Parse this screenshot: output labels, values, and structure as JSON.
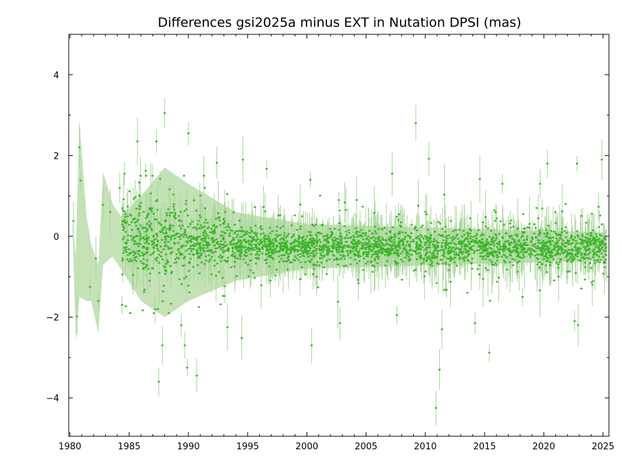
{
  "chart_data": {
    "type": "scatter",
    "title": "Differences gsi2025a minus EXT in Nutation DPSI (mas)",
    "xlabel": "",
    "ylabel": "",
    "xlim": [
      1979.9,
      2025.5
    ],
    "ylim": [
      -4.95,
      5.0
    ],
    "x_ticks": [
      1980,
      1985,
      1990,
      1995,
      2000,
      2005,
      2010,
      2015,
      2020,
      2025
    ],
    "x_tick_labels": [
      "1980",
      "1985",
      "1990",
      "1995",
      "2000",
      "2005",
      "2010",
      "2015",
      "2020",
      "2025"
    ],
    "y_ticks": [
      4,
      2,
      0,
      -2,
      -4
    ],
    "y_tick_labels": [
      "4",
      "2",
      "0",
      "−2",
      "−4"
    ],
    "grid": false,
    "legend": "none",
    "colors": {
      "points": "#3cb52a",
      "error_band": "#c4e2b6",
      "axes": "#000000"
    },
    "outlier_points": [
      {
        "x": 1980.3,
        "y": 0.38
      },
      {
        "x": 1980.6,
        "y": -1.98
      },
      {
        "x": 1980.8,
        "y": 2.2
      },
      {
        "x": 1980.9,
        "y": 1.38
      },
      {
        "x": 1981.7,
        "y": -1.25
      },
      {
        "x": 1982.2,
        "y": -0.55
      },
      {
        "x": 1982.4,
        "y": -1.6
      },
      {
        "x": 1982.8,
        "y": 0.78
      },
      {
        "x": 1983.4,
        "y": 0.6
      },
      {
        "x": 1984.2,
        "y": 1.2
      },
      {
        "x": 1984.4,
        "y": -1.7
      },
      {
        "x": 1984.6,
        "y": 1.55
      },
      {
        "x": 1985.7,
        "y": 2.35
      },
      {
        "x": 1986.4,
        "y": 1.62
      },
      {
        "x": 1987.3,
        "y": 2.35
      },
      {
        "x": 1987.5,
        "y": -3.6
      },
      {
        "x": 1987.8,
        "y": -2.7
      },
      {
        "x": 1988.0,
        "y": 3.05
      },
      {
        "x": 1989.4,
        "y": -2.2
      },
      {
        "x": 1989.7,
        "y": -2.7
      },
      {
        "x": 1989.9,
        "y": -3.25
      },
      {
        "x": 1990.0,
        "y": 2.55
      },
      {
        "x": 1990.7,
        "y": -3.45
      },
      {
        "x": 1991.3,
        "y": 1.5
      },
      {
        "x": 1992.4,
        "y": 1.82
      },
      {
        "x": 1993.3,
        "y": -2.25
      },
      {
        "x": 1994.5,
        "y": -2.52
      },
      {
        "x": 1994.6,
        "y": 1.9
      },
      {
        "x": 1996.6,
        "y": 1.67
      },
      {
        "x": 2000.3,
        "y": 1.4
      },
      {
        "x": 2000.4,
        "y": -2.7
      },
      {
        "x": 2002.8,
        "y": -2.15
      },
      {
        "x": 2004.2,
        "y": 0.9
      },
      {
        "x": 2007.2,
        "y": 1.55
      },
      {
        "x": 2007.6,
        "y": -1.95
      },
      {
        "x": 2009.2,
        "y": 2.8
      },
      {
        "x": 2010.3,
        "y": 1.92
      },
      {
        "x": 2010.9,
        "y": -4.25
      },
      {
        "x": 2011.2,
        "y": -3.3
      },
      {
        "x": 2011.4,
        "y": -2.3
      },
      {
        "x": 2014.2,
        "y": -2.15
      },
      {
        "x": 2014.6,
        "y": 1.42
      },
      {
        "x": 2015.4,
        "y": -2.88
      },
      {
        "x": 2016.5,
        "y": 1.3
      },
      {
        "x": 2018.2,
        "y": -1.5
      },
      {
        "x": 2019.7,
        "y": 1.3
      },
      {
        "x": 2020.3,
        "y": 1.8
      },
      {
        "x": 2022.6,
        "y": -2.1
      },
      {
        "x": 2022.8,
        "y": 1.8
      },
      {
        "x": 2024.1,
        "y": -1.2
      },
      {
        "x": 2024.9,
        "y": 1.9
      },
      {
        "x": 2022.9,
        "y": -2.2
      }
    ],
    "bulk_series": [
      {
        "x_start": 1984.4,
        "x_end": 1990.0,
        "mean": -0.05,
        "spread": 0.8
      },
      {
        "x_start": 1990.0,
        "x_end": 1994.0,
        "mean": -0.15,
        "spread": 0.55
      },
      {
        "x_start": 1994.0,
        "x_end": 2025.3,
        "mean": -0.25,
        "spread": 0.35
      }
    ],
    "error_band": [
      {
        "x": 1980.2,
        "lo": 0.4,
        "hi": 0.4
      },
      {
        "x": 1980.5,
        "lo": -2.6,
        "hi": -0.5
      },
      {
        "x": 1980.8,
        "lo": -1.5,
        "hi": 2.9
      },
      {
        "x": 1981.4,
        "lo": -1.6,
        "hi": 0.5
      },
      {
        "x": 1981.8,
        "lo": -1.6,
        "hi": -0.2
      },
      {
        "x": 1982.4,
        "lo": -2.4,
        "hi": -0.7
      },
      {
        "x": 1982.8,
        "lo": -0.7,
        "hi": 1.6
      },
      {
        "x": 1983.6,
        "lo": -0.5,
        "hi": 0.8
      },
      {
        "x": 1984.3,
        "lo": -0.8,
        "hi": 0.5
      },
      {
        "x": 1986.0,
        "lo": -1.6,
        "hi": 1.0
      },
      {
        "x": 1988.0,
        "lo": -2.0,
        "hi": 1.7
      },
      {
        "x": 1990.0,
        "lo": -1.6,
        "hi": 1.3
      },
      {
        "x": 1994.0,
        "lo": -1.1,
        "hi": 0.6
      },
      {
        "x": 2000.0,
        "lo": -0.8,
        "hi": 0.3
      },
      {
        "x": 2025.3,
        "lo": -0.6,
        "hi": 0.1
      }
    ]
  }
}
